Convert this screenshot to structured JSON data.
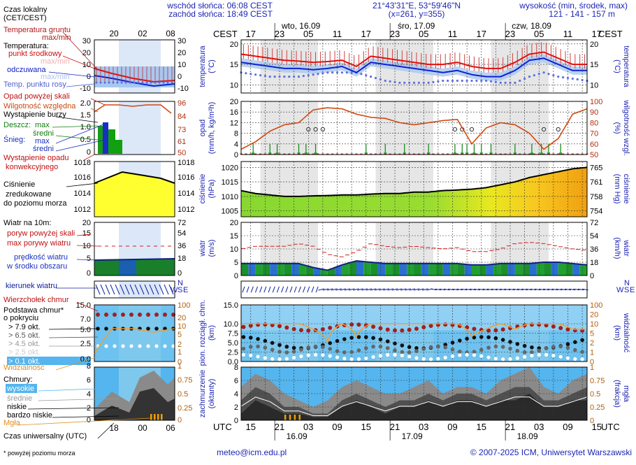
{
  "header": {
    "sunrise": "wschód słońca: 06:08 CEST",
    "sunset": "zachód słońca: 18:49 CEST",
    "coords": "21°43'31\"E, 53°59'46\"N",
    "grid": "(x=261,  y=355)",
    "elev_title": "wysokość (min, środek, max)",
    "elev_values": "121 - 141 - 157 m"
  },
  "legend": {
    "local_time": "Czas lokalny",
    "local_time_sub": "(CET/CEST)",
    "ground_temp": "Temperatura gruntu",
    "maxmin1": "max/min",
    "temp_title": "Temperatura:",
    "temp_mid": "punkt środkowy",
    "maxmin2": "max/min",
    "feels": "odczuwana",
    "maxmin3": "max/min",
    "dew": "Temp. punktu rosy",
    "precip_above": "Opad powyżej skali",
    "humidity": "Wilgotność względna",
    "storm": "Wystąpienie burzy",
    "rain": "Deszcz:",
    "rain_max": "max",
    "rain_mid": "średni",
    "snow": "Śnieg:",
    "snow_max": "max",
    "snow_mid": "średni",
    "precip_occ1": "Wystąpienie opadu",
    "precip_occ2": "konwekcyjnego",
    "pressure1": "Ciśnienie",
    "pressure2": "zredukowane",
    "pressure3": "do poziomu morza",
    "wind_title": "Wiatr na 10m:",
    "gust_above": "poryw powyżej skali",
    "gust_max": "max porywy wiatru",
    "wind_avg1": "prędkość wiatru",
    "wind_avg2": "w środku obszaru",
    "wind_dir": "kierunek wiatru",
    "cloud_top": "Wierzchołek chmur",
    "cloud_base1": "Podstawa chmur*",
    "cloud_base2": "o pokryciu",
    "okt79": "> 7.9 okt.",
    "okt65": "> 6.5 okt.",
    "okt45": "> 4.5 okt.",
    "okt25": "> 2.5 okt.",
    "okt01": "> 0.1 okt.",
    "visibility": "Widzialność",
    "clouds_title": "Chmury:",
    "high": "wysokie",
    "mid": "średnie",
    "low": "niskie",
    "vlow": "bardzo niskie",
    "fog": "Mgła",
    "utc_title": "Czas uniwersalny (UTC)",
    "footnote": "* powyżej poziomu morza"
  },
  "mini_axis": {
    "local_ticks": [
      "20",
      "02",
      "08"
    ],
    "utc_ticks": [
      "18",
      "00",
      "06"
    ]
  },
  "main_axis": {
    "cest_label": "CEST",
    "utc_label": "UTC",
    "cest_ticks": [
      "17",
      "23",
      "05",
      "11",
      "17",
      "23",
      "05",
      "11",
      "17",
      "23",
      "05",
      "11",
      "17"
    ],
    "utc_ticks": [
      "15",
      "21",
      "03",
      "09",
      "15",
      "21",
      "03",
      "09",
      "15",
      "21",
      "03",
      "09",
      "15"
    ],
    "day_top": [
      "wto, 16.09",
      "śro, 17.09",
      "czw, 18.09"
    ],
    "day_bottom": [
      "16.09",
      "17.09",
      "18.09"
    ]
  },
  "side_labels": {
    "temp_l": "temperatura",
    "temp_l2": "(°C)",
    "temp_r": "temperatura",
    "temp_r2": "(°C)",
    "precip_l": "opad",
    "precip_l2": "(mm/h, kg/m²h)",
    "precip_r": "wilgotność wzgl.",
    "precip_r2": "(%)",
    "press_l": "ciśnienie",
    "press_l2": "(hPa)",
    "press_r": "ciśnienie",
    "press_r2": "(mm Hg)",
    "wind_l": "wiatr",
    "wind_l2": "(m/s)",
    "wind_r": "wiatr",
    "wind_r2": "(km/h)",
    "cloud_l": "pion. rozciągł. chm.",
    "cloud_l2": "(km)",
    "cloud_r": "widzialność",
    "cloud_r2": "(km)",
    "cover_l": "zachmurzenie",
    "cover_l2": "(oktanty)",
    "cover_r": "mgła",
    "cover_r2": "(frakcja)"
  },
  "compass": {
    "n": "N",
    "w": "W",
    "s": "S",
    "e": "E"
  },
  "footer": {
    "email": "meteo@icm.edu.pl",
    "copyright": "© 2007-2025 ICM, Uniwersytet Warszawski"
  },
  "chart_data": [
    {
      "type": "line",
      "panel": "temperature",
      "ylim": [
        8,
        21
      ],
      "yticks": [
        10,
        15,
        20
      ],
      "x_hours": [
        0,
        3,
        6,
        9,
        12,
        15,
        18,
        21,
        24,
        27,
        30,
        33,
        36,
        39,
        42,
        45,
        48,
        51,
        54,
        57,
        60,
        63,
        66,
        69,
        72
      ],
      "series": [
        {
          "name": "punkt środkowy",
          "values": [
            17.5,
            17,
            16.5,
            16,
            15.8,
            15.5,
            15.7,
            16,
            14.5,
            17,
            16.5,
            16,
            15.5,
            15,
            15,
            15.5,
            14.5,
            14,
            14,
            15.5,
            17.5,
            18,
            16.5,
            15,
            15
          ]
        },
        {
          "name": "odczuwana",
          "values": [
            15.5,
            15,
            14.5,
            14,
            14,
            13.7,
            14,
            14.5,
            13,
            15.5,
            15,
            14.5,
            14,
            13.5,
            13,
            13.5,
            12.5,
            12,
            12,
            13.5,
            16,
            16.5,
            15,
            13.5,
            13.5
          ]
        },
        {
          "name": "Temp. punktu rosy",
          "values": [
            13,
            12.5,
            12,
            12,
            12,
            12.5,
            13,
            13,
            13,
            12,
            11,
            10.5,
            10.5,
            10.5,
            11,
            11,
            11,
            11,
            10.5,
            10.5,
            12,
            13,
            12,
            11.5,
            11
          ]
        }
      ]
    },
    {
      "type": "line",
      "panel": "precipitation_humidity",
      "ylim_precip": [
        0,
        20
      ],
      "yticks_precip": [
        0,
        4,
        8,
        12,
        16,
        20
      ],
      "ylim_humidity": [
        50,
        100
      ],
      "yticks_humidity": [
        50,
        60,
        70,
        80,
        90,
        100
      ],
      "x_hours": [
        0,
        3,
        6,
        9,
        12,
        15,
        18,
        21,
        24,
        27,
        30,
        33,
        36,
        39,
        42,
        45,
        48,
        51,
        54,
        57,
        60,
        63,
        66,
        69,
        72
      ],
      "series": [
        {
          "name": "Wilgotność względna",
          "values": [
            55,
            62,
            72,
            78,
            80,
            92,
            94,
            93,
            88,
            85,
            84,
            80,
            78,
            80,
            82,
            83,
            60,
            75,
            80,
            78,
            70,
            55,
            65,
            88,
            93
          ]
        }
      ],
      "precip_occurrence_hours": [
        2.5,
        6,
        7.5,
        12,
        13.5,
        15.5,
        26,
        30,
        34,
        39,
        44.5,
        46,
        47,
        48.5,
        50,
        52,
        57,
        60.5,
        62.5,
        64,
        66.5
      ]
    },
    {
      "type": "area",
      "panel": "pressure",
      "ylim": [
        1003,
        1022
      ],
      "yticks": [
        1005,
        1010,
        1015,
        1020
      ],
      "yticks_mmhg": [
        754,
        758,
        761,
        765
      ],
      "x_hours": [
        0,
        3,
        6,
        9,
        12,
        15,
        18,
        21,
        24,
        27,
        30,
        33,
        36,
        39,
        42,
        45,
        48,
        51,
        54,
        57,
        60,
        63,
        66,
        69,
        72
      ],
      "values": [
        1012,
        1011,
        1010.5,
        1010,
        1010,
        1010.2,
        1010.3,
        1010.5,
        1010.5,
        1010.8,
        1011,
        1011,
        1011.5,
        1011.5,
        1012,
        1012.2,
        1012.5,
        1013,
        1014,
        1015,
        1016.5,
        1017.5,
        1018.5,
        1019.5,
        1020
      ]
    },
    {
      "type": "area",
      "panel": "wind",
      "ylim": [
        0,
        20
      ],
      "yticks": [
        0,
        5,
        10,
        15,
        20
      ],
      "yticks_kmh": [
        0,
        18,
        36,
        54,
        72
      ],
      "x_hours": [
        0,
        3,
        6,
        9,
        12,
        15,
        18,
        21,
        24,
        27,
        30,
        33,
        36,
        39,
        42,
        45,
        48,
        51,
        54,
        57,
        60,
        63,
        66,
        69,
        72
      ],
      "speed": [
        4.5,
        4.5,
        4.5,
        4.5,
        4.5,
        3,
        2,
        4,
        5.5,
        5,
        4.5,
        4.5,
        4.5,
        4.5,
        4.5,
        4.5,
        4,
        4,
        4.5,
        4.5,
        4.5,
        5,
        5,
        4.5,
        4
      ],
      "gust": [
        10,
        11,
        11,
        11,
        12,
        11,
        8,
        7,
        9,
        12,
        11,
        10.5,
        11,
        10.5,
        10,
        10.5,
        9,
        9,
        10,
        12,
        12.5,
        12,
        11,
        10,
        9.5
      ]
    },
    {
      "type": "scatter",
      "panel": "cloud_extent_visibility",
      "ylim": [
        0,
        15
      ],
      "yticks": [
        0,
        2.5,
        5,
        7.5,
        10,
        15
      ],
      "visibility_ticks": [
        0,
        1,
        2,
        5,
        10,
        20,
        100
      ],
      "x_hours": [
        0,
        3,
        6,
        9,
        12,
        15,
        18,
        21,
        24,
        27,
        30,
        33,
        36,
        39,
        42,
        45,
        48,
        51,
        54,
        57,
        60,
        63,
        66,
        69,
        72
      ],
      "visibility_km": [
        10,
        10,
        10,
        10,
        10,
        5,
        1,
        10,
        2,
        10,
        10,
        10,
        10,
        10,
        10,
        10,
        2,
        5,
        10,
        5,
        10,
        10,
        10,
        5,
        5
      ]
    },
    {
      "type": "area",
      "panel": "cloud_cover",
      "ylim": [
        0,
        8
      ],
      "yticks": [
        0,
        2,
        4,
        6,
        8
      ],
      "yticks_fog": [
        0,
        0.25,
        0.5,
        0.75,
        1
      ],
      "x_hours": [
        0,
        3,
        6,
        9,
        12,
        15,
        18,
        21,
        24,
        27,
        30,
        33,
        36,
        39,
        42,
        45,
        48,
        51,
        54,
        57,
        60,
        63,
        66,
        69,
        72
      ],
      "high": [
        5,
        7,
        6,
        4,
        3,
        2,
        3,
        5,
        6,
        5,
        4,
        4,
        5,
        6,
        4,
        5,
        5,
        4,
        6,
        7,
        8,
        5,
        4,
        6,
        7
      ],
      "mid": [
        3,
        5,
        4,
        2,
        2,
        1,
        1,
        3,
        4,
        3,
        2,
        3,
        3,
        4,
        3,
        4,
        4,
        3,
        4,
        5,
        5,
        3,
        3,
        4,
        5
      ],
      "low": [
        1,
        3,
        2,
        1,
        1,
        0.5,
        0.5,
        2,
        3,
        2,
        1,
        2,
        2,
        3,
        2,
        3,
        3,
        2,
        3,
        3,
        4,
        2,
        2,
        3,
        3
      ]
    }
  ]
}
